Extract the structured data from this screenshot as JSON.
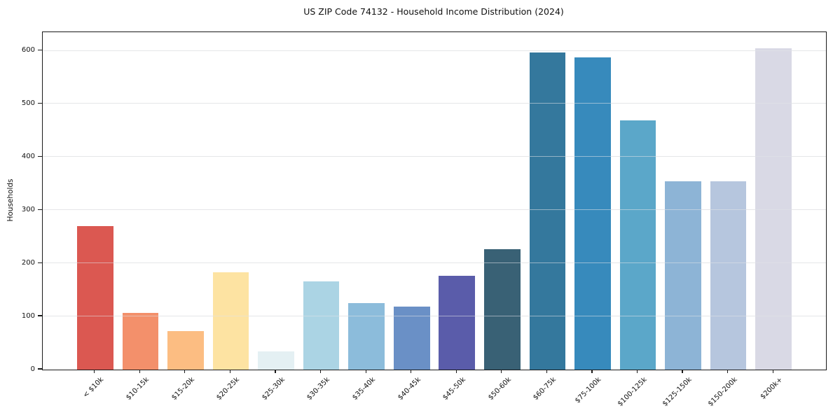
{
  "chart_data": {
    "type": "bar",
    "title": "US ZIP Code 74132 - Household Income Distribution (2024)",
    "xlabel": "",
    "ylabel": "Households",
    "categories": [
      "< $10k",
      "$10-15k",
      "$15-20k",
      "$20-25k",
      "$25-30k",
      "$30-35k",
      "$35-40k",
      "$40-45k",
      "$45-50k",
      "$50-60k",
      "$60-75k",
      "$75-100k",
      "$100-125k",
      "$125-150k",
      "$150-200k",
      "$200k+"
    ],
    "values": [
      270,
      107,
      72,
      183,
      34,
      166,
      125,
      118,
      176,
      227,
      597,
      587,
      469,
      355,
      355,
      605
    ],
    "bar_colors": [
      "#db5851",
      "#f3906b",
      "#fcbd82",
      "#fde3a2",
      "#e4f0f3",
      "#abd4e4",
      "#8cbcdb",
      "#6a90c6",
      "#5a5caa",
      "#396175",
      "#34789d",
      "#378abc",
      "#5ba7c9",
      "#8db4d6",
      "#b6c6de",
      "#d9d9e5"
    ],
    "yticks": [
      0,
      100,
      200,
      300,
      400,
      500,
      600
    ],
    "ylim": [
      0,
      635
    ],
    "grid": "horizontal",
    "legend": "none",
    "x_tick_rotation_deg": 45
  },
  "colors": {
    "background": "#ffffff",
    "grid": "#e8e8e8",
    "spine": "#1a1a1a",
    "text": "#111111"
  }
}
